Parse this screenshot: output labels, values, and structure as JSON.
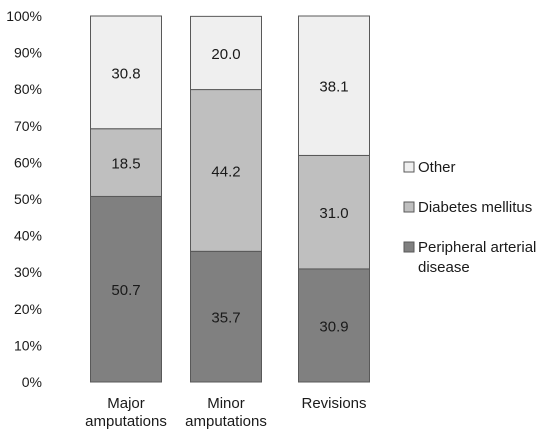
{
  "chart_data": {
    "type": "bar",
    "stacked": true,
    "orientation": "vertical",
    "categories": [
      "Major\namputations",
      "Minor\namputations",
      "Revisions"
    ],
    "series": [
      {
        "name": "Peripheral arterial\ndisease",
        "color": "#808080",
        "values": [
          50.7,
          35.7,
          30.9
        ]
      },
      {
        "name": "Diabetes mellitus",
        "color": "#bfbfbf",
        "values": [
          18.5,
          44.2,
          31.0
        ]
      },
      {
        "name": "Other",
        "color": "#efefef",
        "values": [
          30.8,
          20.0,
          38.1
        ]
      }
    ],
    "yticks": [
      "0%",
      "10%",
      "20%",
      "30%",
      "40%",
      "50%",
      "60%",
      "70%",
      "80%",
      "90%",
      "100%"
    ],
    "ylim": [
      0,
      100
    ],
    "grid": false,
    "legend_position": "right",
    "legend_order": [
      "Other",
      "Diabetes mellitus",
      "Peripheral arterial\ndisease"
    ]
  }
}
